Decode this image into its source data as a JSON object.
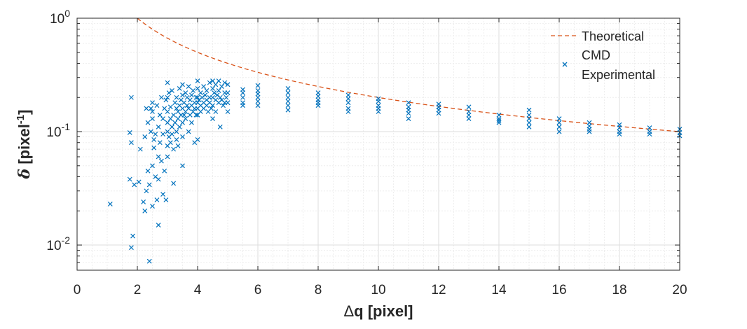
{
  "chart_data": {
    "type": "scatter",
    "xlabel": "Δq [pixel]",
    "ylabel": "δ [pixel-1]",
    "xscale": "linear",
    "yscale": "log",
    "xlim": [
      0,
      20
    ],
    "ylim": [
      0.006,
      1
    ],
    "grid": true,
    "minor_grid": true,
    "legend_position": "top-right",
    "x_ticks": [
      0,
      2,
      4,
      6,
      8,
      10,
      12,
      14,
      16,
      18,
      20
    ],
    "y_ticks": [
      {
        "value": 0.01,
        "base": "10",
        "exp": "-2"
      },
      {
        "value": 0.1,
        "base": "10",
        "exp": "-1"
      },
      {
        "value": 1,
        "base": "10",
        "exp": "0"
      }
    ],
    "colors": {
      "theoretical": "#d95319",
      "experimental": "#0072bd",
      "grid": "#e6e6e6",
      "axis": "#262626"
    },
    "series": [
      {
        "name": "Theoretical",
        "style": "dashed-line",
        "function": "y = 2 / x",
        "x_range": [
          2,
          20
        ]
      },
      {
        "name": "CMD Experimental",
        "style": "x-marker",
        "points": [
          [
            1.1,
            0.023
          ],
          [
            1.75,
            0.098
          ],
          [
            1.8,
            0.2
          ],
          [
            1.8,
            0.08
          ],
          [
            1.75,
            0.038
          ],
          [
            1.8,
            0.0095
          ],
          [
            1.85,
            0.012
          ],
          [
            1.9,
            0.034
          ],
          [
            2.05,
            0.036
          ],
          [
            2.1,
            0.07
          ],
          [
            2.2,
            0.024
          ],
          [
            2.25,
            0.02
          ],
          [
            2.25,
            0.09
          ],
          [
            2.3,
            0.16
          ],
          [
            2.3,
            0.03
          ],
          [
            2.35,
            0.12
          ],
          [
            2.35,
            0.045
          ],
          [
            2.4,
            0.0072
          ],
          [
            2.4,
            0.034
          ],
          [
            2.45,
            0.16
          ],
          [
            2.45,
            0.1
          ],
          [
            2.5,
            0.18
          ],
          [
            2.5,
            0.15
          ],
          [
            2.5,
            0.13
          ],
          [
            2.5,
            0.05
          ],
          [
            2.5,
            0.022
          ],
          [
            2.55,
            0.085
          ],
          [
            2.55,
            0.072
          ],
          [
            2.6,
            0.095
          ],
          [
            2.6,
            0.04
          ],
          [
            2.65,
            0.025
          ],
          [
            2.65,
            0.17
          ],
          [
            2.7,
            0.11
          ],
          [
            2.7,
            0.06
          ],
          [
            2.7,
            0.038
          ],
          [
            2.7,
            0.015
          ],
          [
            2.75,
            0.14
          ],
          [
            2.75,
            0.08
          ],
          [
            2.8,
            0.2
          ],
          [
            2.8,
            0.055
          ],
          [
            2.85,
            0.028
          ],
          [
            2.85,
            0.13
          ],
          [
            2.85,
            0.095
          ],
          [
            2.9,
            0.16
          ],
          [
            2.9,
            0.045
          ],
          [
            2.95,
            0.19
          ],
          [
            2.95,
            0.025
          ],
          [
            3.0,
            0.27
          ],
          [
            3.0,
            0.2
          ],
          [
            3.0,
            0.15
          ],
          [
            3.0,
            0.12
          ],
          [
            3.0,
            0.1
          ],
          [
            3.0,
            0.075
          ],
          [
            3.0,
            0.06
          ],
          [
            3.05,
            0.22
          ],
          [
            3.05,
            0.09
          ],
          [
            3.1,
            0.165
          ],
          [
            3.1,
            0.13
          ],
          [
            3.1,
            0.08
          ],
          [
            3.15,
            0.23
          ],
          [
            3.15,
            0.11
          ],
          [
            3.15,
            0.095
          ],
          [
            3.2,
            0.14
          ],
          [
            3.2,
            0.07
          ],
          [
            3.2,
            0.035
          ],
          [
            3.25,
            0.18
          ],
          [
            3.25,
            0.12
          ],
          [
            3.3,
            0.2
          ],
          [
            3.3,
            0.16
          ],
          [
            3.3,
            0.1
          ],
          [
            3.3,
            0.085
          ],
          [
            3.35,
            0.15
          ],
          [
            3.35,
            0.13
          ],
          [
            3.35,
            0.075
          ],
          [
            3.4,
            0.24
          ],
          [
            3.4,
            0.17
          ],
          [
            3.4,
            0.11
          ],
          [
            3.45,
            0.19
          ],
          [
            3.45,
            0.14
          ],
          [
            3.5,
            0.26
          ],
          [
            3.5,
            0.21
          ],
          [
            3.5,
            0.16
          ],
          [
            3.5,
            0.12
          ],
          [
            3.5,
            0.09
          ],
          [
            3.5,
            0.05
          ],
          [
            3.55,
            0.18
          ],
          [
            3.55,
            0.14
          ],
          [
            3.6,
            0.22
          ],
          [
            3.6,
            0.15
          ],
          [
            3.6,
            0.13
          ],
          [
            3.65,
            0.2
          ],
          [
            3.65,
            0.17
          ],
          [
            3.7,
            0.25
          ],
          [
            3.7,
            0.16
          ],
          [
            3.7,
            0.1
          ],
          [
            3.75,
            0.19
          ],
          [
            3.75,
            0.14
          ],
          [
            3.8,
            0.21
          ],
          [
            3.8,
            0.17
          ],
          [
            3.8,
            0.12
          ],
          [
            3.85,
            0.23
          ],
          [
            3.85,
            0.15
          ],
          [
            3.9,
            0.18
          ],
          [
            3.9,
            0.16
          ],
          [
            3.9,
            0.08
          ],
          [
            3.95,
            0.2
          ],
          [
            3.95,
            0.14
          ],
          [
            4.0,
            0.28
          ],
          [
            4.0,
            0.24
          ],
          [
            4.0,
            0.2
          ],
          [
            4.0,
            0.18
          ],
          [
            4.0,
            0.16
          ],
          [
            4.0,
            0.14
          ],
          [
            4.0,
            0.085
          ],
          [
            4.05,
            0.19
          ],
          [
            4.1,
            0.22
          ],
          [
            4.1,
            0.17
          ],
          [
            4.1,
            0.15
          ],
          [
            4.15,
            0.2
          ],
          [
            4.2,
            0.25
          ],
          [
            4.2,
            0.18
          ],
          [
            4.2,
            0.16
          ],
          [
            4.25,
            0.21
          ],
          [
            4.3,
            0.23
          ],
          [
            4.3,
            0.19
          ],
          [
            4.3,
            0.17
          ],
          [
            4.35,
            0.15
          ],
          [
            4.4,
            0.27
          ],
          [
            4.4,
            0.2
          ],
          [
            4.4,
            0.18
          ],
          [
            4.45,
            0.16
          ],
          [
            4.5,
            0.28
          ],
          [
            4.5,
            0.24
          ],
          [
            4.5,
            0.2
          ],
          [
            4.5,
            0.17
          ],
          [
            4.5,
            0.13
          ],
          [
            4.55,
            0.22
          ],
          [
            4.6,
            0.26
          ],
          [
            4.6,
            0.19
          ],
          [
            4.6,
            0.15
          ],
          [
            4.65,
            0.21
          ],
          [
            4.7,
            0.28
          ],
          [
            4.7,
            0.23
          ],
          [
            4.7,
            0.18
          ],
          [
            4.75,
            0.2
          ],
          [
            4.75,
            0.11
          ],
          [
            4.8,
            0.25
          ],
          [
            4.8,
            0.19
          ],
          [
            4.85,
            0.17
          ],
          [
            4.9,
            0.27
          ],
          [
            4.9,
            0.22
          ],
          [
            4.9,
            0.18
          ],
          [
            4.95,
            0.2
          ],
          [
            5.0,
            0.26
          ],
          [
            5.0,
            0.22
          ],
          [
            5.0,
            0.18
          ],
          [
            5.0,
            0.15
          ],
          [
            5.5,
            0.235
          ],
          [
            5.5,
            0.22
          ],
          [
            5.5,
            0.2
          ],
          [
            5.5,
            0.18
          ],
          [
            5.5,
            0.17
          ],
          [
            6.0,
            0.255
          ],
          [
            6.0,
            0.23
          ],
          [
            6.0,
            0.215
          ],
          [
            6.0,
            0.2
          ],
          [
            6.0,
            0.185
          ],
          [
            6.0,
            0.17
          ],
          [
            7.0,
            0.24
          ],
          [
            7.0,
            0.22
          ],
          [
            7.0,
            0.2
          ],
          [
            7.0,
            0.185
          ],
          [
            7.0,
            0.17
          ],
          [
            7.0,
            0.155
          ],
          [
            8.0,
            0.22
          ],
          [
            8.0,
            0.205
          ],
          [
            8.0,
            0.19
          ],
          [
            8.0,
            0.18
          ],
          [
            8.0,
            0.17
          ],
          [
            9.0,
            0.21
          ],
          [
            9.0,
            0.195
          ],
          [
            9.0,
            0.18
          ],
          [
            9.0,
            0.16
          ],
          [
            9.0,
            0.15
          ],
          [
            10.0,
            0.195
          ],
          [
            10.0,
            0.185
          ],
          [
            10.0,
            0.17
          ],
          [
            10.0,
            0.16
          ],
          [
            10.0,
            0.15
          ],
          [
            11.0,
            0.18
          ],
          [
            11.0,
            0.165
          ],
          [
            11.0,
            0.155
          ],
          [
            11.0,
            0.145
          ],
          [
            11.0,
            0.13
          ],
          [
            12.0,
            0.175
          ],
          [
            12.0,
            0.165
          ],
          [
            12.0,
            0.155
          ],
          [
            12.0,
            0.145
          ],
          [
            13.0,
            0.165
          ],
          [
            13.0,
            0.15
          ],
          [
            13.0,
            0.14
          ],
          [
            13.0,
            0.13
          ],
          [
            14.0,
            0.14
          ],
          [
            14.0,
            0.13
          ],
          [
            14.0,
            0.125
          ],
          [
            14.0,
            0.12
          ],
          [
            15.0,
            0.155
          ],
          [
            15.0,
            0.14
          ],
          [
            15.0,
            0.13
          ],
          [
            15.0,
            0.12
          ],
          [
            15.0,
            0.11
          ],
          [
            16.0,
            0.13
          ],
          [
            16.0,
            0.12
          ],
          [
            16.0,
            0.11
          ],
          [
            16.0,
            0.1
          ],
          [
            17.0,
            0.12
          ],
          [
            17.0,
            0.112
          ],
          [
            17.0,
            0.105
          ],
          [
            17.0,
            0.1
          ],
          [
            18.0,
            0.115
          ],
          [
            18.0,
            0.108
          ],
          [
            18.0,
            0.1
          ],
          [
            18.0,
            0.095
          ],
          [
            19.0,
            0.108
          ],
          [
            19.0,
            0.1
          ],
          [
            19.0,
            0.095
          ],
          [
            20.0,
            0.105
          ],
          [
            20.0,
            0.098
          ],
          [
            20.0,
            0.092
          ]
        ]
      }
    ],
    "legend": [
      {
        "label": "Theoretical",
        "marker": "dashed-line"
      },
      {
        "label": "CMD Experimental",
        "line1": "CMD",
        "line2": "Experimental",
        "marker": "x-marker"
      }
    ]
  },
  "axes": {
    "x_title_symbol": "Δ",
    "x_title_rest": "q [pixel]",
    "y_title_symbol": "δ",
    "y_title_unit": "[pixel",
    "y_title_exp": "-1",
    "y_title_close": "]"
  }
}
